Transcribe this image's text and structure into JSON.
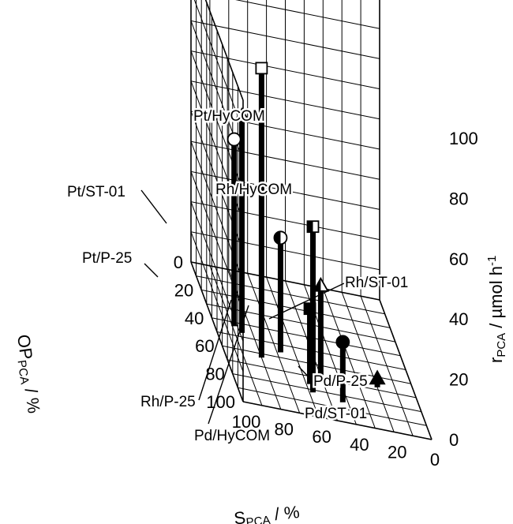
{
  "chart_data": {
    "type": "scatter3d",
    "x_axis": {
      "label": "S",
      "label_sub": "PCA",
      "label_unit": " / %",
      "range": [
        100,
        0
      ],
      "ticks": [
        "100",
        "80",
        "60",
        "40",
        "20",
        "0"
      ]
    },
    "y_axis": {
      "label": "OP",
      "label_sub": "PCA",
      "label_unit": " / %",
      "range": [
        0,
        100
      ],
      "ticks": [
        "0",
        "20",
        "40",
        "60",
        "80",
        "100"
      ]
    },
    "z_axis": {
      "label": "r",
      "label_sub": "PCA",
      "label_unit": " / µmol h",
      "label_sup": "-1",
      "range": [
        0,
        100
      ],
      "ticks": [
        "0",
        "20",
        "40",
        "60",
        "80",
        "100"
      ]
    },
    "grid": true,
    "points": [
      {
        "name": "Pt/HyCOM",
        "metal": "Pt",
        "support": "HyCOM",
        "marker": "square",
        "filled": "none",
        "s": 80,
        "op": 63,
        "r": 96
      },
      {
        "name": "Pt/ST-01",
        "metal": "Pt",
        "support": "ST-01",
        "marker": "triangle",
        "filled": "none",
        "s": 86,
        "op": 47,
        "r": 72
      },
      {
        "name": "Pt/P-25",
        "metal": "Pt",
        "support": "P-25",
        "marker": "circle",
        "filled": "none",
        "s": 89,
        "op": 43,
        "r": 62
      },
      {
        "name": "Rh/HyCOM",
        "metal": "Rh",
        "support": "HyCOM",
        "marker": "square",
        "filled": "half",
        "s": 58,
        "op": 82,
        "r": 55
      },
      {
        "name": "Rh/P-25",
        "metal": "Rh",
        "support": "P-25",
        "marker": "circle",
        "filled": "half",
        "s": 68,
        "op": 56,
        "r": 38
      },
      {
        "name": "Rh/ST-01",
        "metal": "Rh",
        "support": "ST-01",
        "marker": "triangle",
        "filled": "half",
        "s": 50,
        "op": 68,
        "r": 30
      },
      {
        "name": "Pd/HyCOM",
        "metal": "Pd",
        "support": "HyCOM",
        "marker": "square",
        "filled": "full",
        "s": 58,
        "op": 76,
        "r": 25
      },
      {
        "name": "Pd/P-25",
        "metal": "Pd",
        "support": "P-25",
        "marker": "circle",
        "filled": "full",
        "s": 43,
        "op": 85,
        "r": 20
      },
      {
        "name": "Pd/ST-01",
        "metal": "Pd",
        "support": "ST-01",
        "marker": "triangle",
        "filled": "full",
        "s": 20,
        "op": 68,
        "r": 3
      }
    ]
  }
}
